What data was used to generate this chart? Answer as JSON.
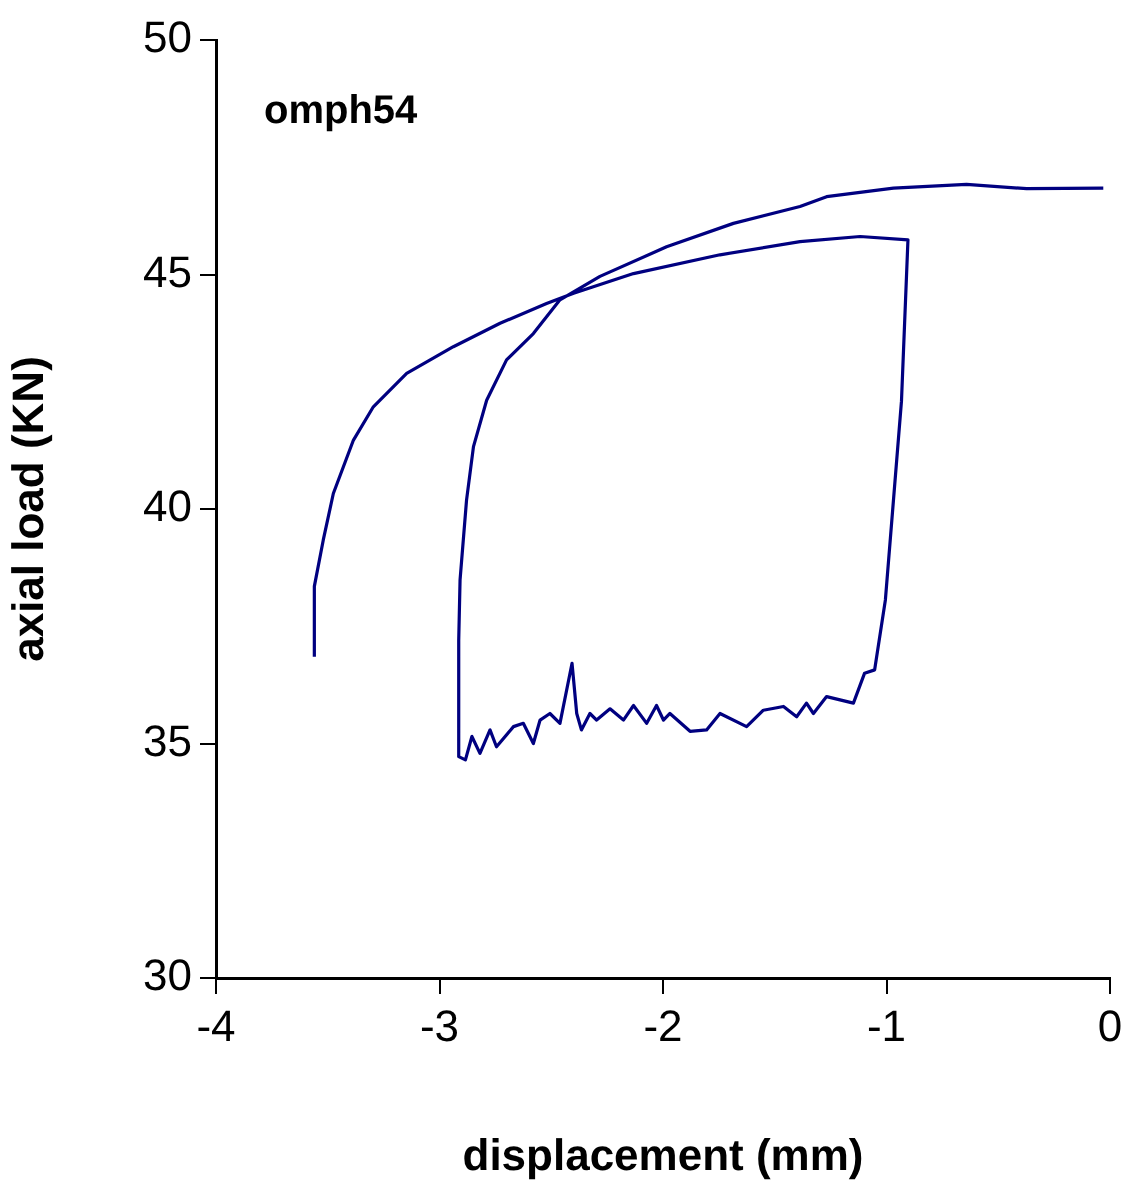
{
  "chart_data": {
    "type": "line",
    "xlabel": "displacement (mm)",
    "ylabel": "axial load (KN)",
    "annotations": [
      "omph54"
    ],
    "xlim": [
      -4,
      0
    ],
    "xticks": [
      -4,
      -3,
      -2,
      -1,
      0
    ],
    "ylim": [
      30,
      50
    ],
    "yticks": [
      30,
      35,
      40,
      45,
      50
    ],
    "grid": false,
    "legend": false,
    "marker": "none",
    "line_style": "solid",
    "series": [
      {
        "color": "#000080",
        "x": [
          -3.56,
          -3.56,
          -3.52,
          -3.475,
          -3.385,
          -3.296,
          -3.147,
          -2.938,
          -2.729,
          -2.521,
          -2.4,
          -2.132,
          -1.745,
          -1.387,
          -1.118,
          -0.904,
          -0.933,
          -1.005,
          -1.053,
          -1.098,
          -1.148,
          -1.208,
          -1.268,
          -1.327,
          -1.358,
          -1.402,
          -1.461,
          -1.551,
          -1.626,
          -1.745,
          -1.805,
          -1.879,
          -1.969,
          -1.998,
          -2.029,
          -2.073,
          -2.132,
          -2.177,
          -2.237,
          -2.297,
          -2.327,
          -2.365,
          -2.386,
          -2.407,
          -2.461,
          -2.506,
          -2.55,
          -2.58,
          -2.625,
          -2.669,
          -2.745,
          -2.774,
          -2.819,
          -2.855,
          -2.884,
          -2.914,
          -2.914,
          -2.908,
          -2.879,
          -2.848,
          -2.789,
          -2.7,
          -2.58,
          -2.461,
          -2.282,
          -1.984,
          -1.685,
          -1.387,
          -1.268,
          -0.969,
          -0.642,
          -0.373,
          -0.03
        ],
        "values": [
          36.85,
          38.35,
          39.34,
          40.33,
          41.47,
          42.18,
          42.89,
          43.46,
          43.96,
          44.38,
          44.6,
          45.02,
          45.42,
          45.7,
          45.81,
          45.74,
          42.3,
          38.06,
          36.57,
          36.5,
          35.86,
          35.93,
          36.0,
          35.64,
          35.86,
          35.57,
          35.79,
          35.71,
          35.36,
          35.64,
          35.29,
          35.26,
          35.64,
          35.5,
          35.81,
          35.43,
          35.81,
          35.5,
          35.74,
          35.5,
          35.64,
          35.29,
          35.64,
          36.71,
          35.43,
          35.64,
          35.5,
          35.0,
          35.43,
          35.36,
          34.93,
          35.29,
          34.79,
          35.15,
          34.65,
          34.72,
          37.2,
          38.49,
          40.19,
          41.33,
          42.32,
          43.18,
          43.74,
          44.46,
          44.96,
          45.59,
          46.09,
          46.45,
          46.66,
          46.84,
          46.92,
          46.83,
          46.84
        ]
      }
    ]
  }
}
